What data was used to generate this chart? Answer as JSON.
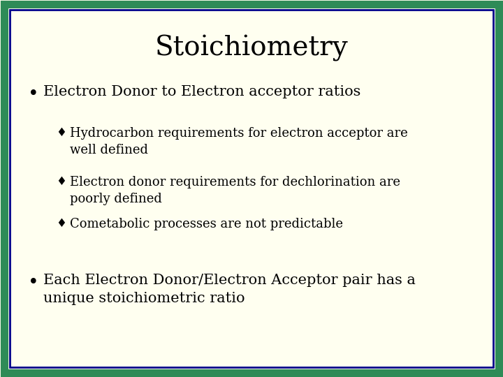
{
  "title": "Stoichiometry",
  "title_fontsize": 28,
  "background_color": "#FFFFF0",
  "border_color_outer": "#2E8B57",
  "border_color_inner": "#00008B",
  "bullet1": "Electron Donor to Electron acceptor ratios",
  "sub_bullets": [
    "Hydrocarbon requirements for electron acceptor are\nwell defined",
    "Electron donor requirements for dechlorination are\npoorly defined",
    "Cometabolic processes are not predictable"
  ],
  "bullet2": "Each Electron Donor/Electron Acceptor pair has a\nunique stoichiometric ratio",
  "text_color": "#000000",
  "bullet_fontsize": 15,
  "sub_bullet_fontsize": 13,
  "font": "serif",
  "border_outer_lw": 8,
  "border_inner_lw": 2
}
